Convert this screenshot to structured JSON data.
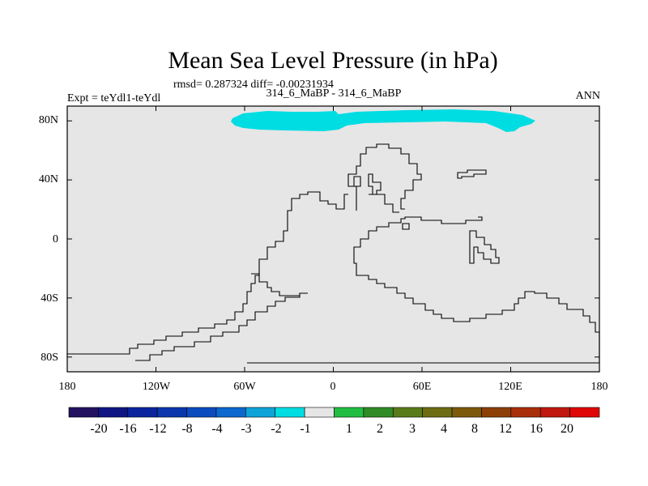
{
  "chart_data": {
    "type": "map",
    "title": "Mean Sea Level Pressure (in hPa)",
    "stats": "rmsd= 0.287324 diff= -0.00231934",
    "experiment": "Expt = teYdl1-teYdl",
    "comparison": "314_6_MaBP - 314_6_MaBP",
    "season": "ANN",
    "background_color": "#e6e6e6",
    "coastline_color": "#000000",
    "xlim": [
      -180,
      180
    ],
    "ylim": [
      -90,
      90
    ],
    "x_ticks": [
      {
        "value": -180,
        "label": "180"
      },
      {
        "value": -120,
        "label": "120W"
      },
      {
        "value": -60,
        "label": "60W"
      },
      {
        "value": 0,
        "label": "0"
      },
      {
        "value": 60,
        "label": "60E"
      },
      {
        "value": 120,
        "label": "120E"
      },
      {
        "value": 180,
        "label": "180"
      }
    ],
    "y_ticks": [
      {
        "value": 80,
        "label": "80N"
      },
      {
        "value": 40,
        "label": "40N"
      },
      {
        "value": 0,
        "label": "0"
      },
      {
        "value": -40,
        "label": "40S"
      },
      {
        "value": -80,
        "label": "80S"
      }
    ],
    "anomaly_region": {
      "range": "-2 to -1",
      "color": "#00dde2",
      "lon_range": [
        -70,
        137
      ],
      "lat_range": [
        72,
        88
      ]
    },
    "colorbar": {
      "colors": [
        "#221260",
        "#0f1683",
        "#0a259e",
        "#0b37ad",
        "#0a4cc0",
        "#0a68cf",
        "#0ea4d9",
        "#00dde2",
        "#e6e6e6",
        "#21bd42",
        "#2e8c26",
        "#5a7b1a",
        "#6e6d13",
        "#7d5a0b",
        "#8c3f06",
        "#a82e08",
        "#c0180e",
        "#e00606"
      ],
      "labels": [
        "-20",
        "-16",
        "-12",
        "-8",
        "-4",
        "-3",
        "-2",
        "-1",
        "1",
        "2",
        "3",
        "4",
        "8",
        "12",
        "16",
        "20"
      ]
    }
  }
}
